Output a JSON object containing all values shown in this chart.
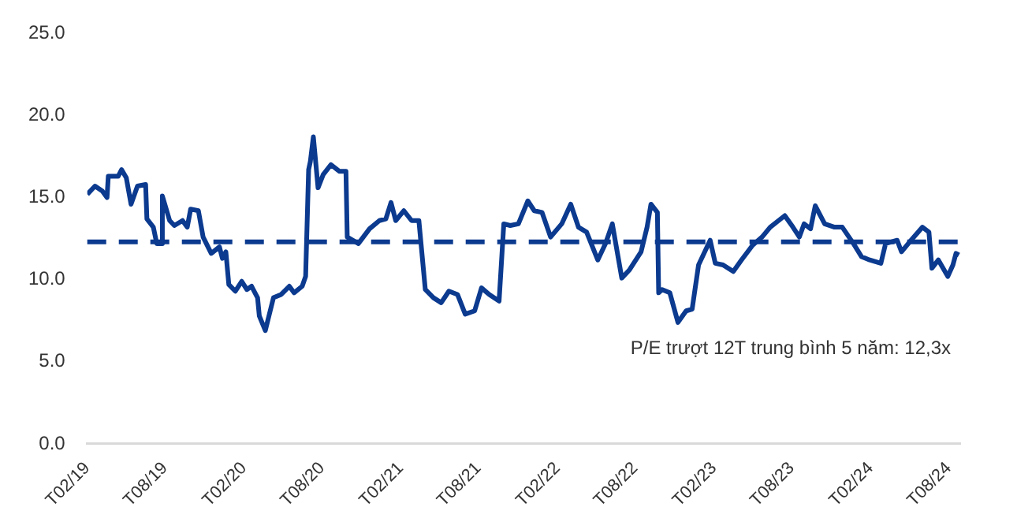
{
  "chart_data": {
    "type": "line",
    "x": [
      "2019-02-01",
      "2019-02-19",
      "2019-03-08",
      "2019-03-19",
      "2019-03-22",
      "2019-04-14",
      "2019-04-22",
      "2019-05-03",
      "2019-05-14",
      "2019-05-29",
      "2019-06-17",
      "2019-06-20",
      "2019-07-05",
      "2019-07-13",
      "2019-07-24",
      "2019-07-26",
      "2019-08-12",
      "2019-08-23",
      "2019-09-11",
      "2019-09-22",
      "2019-09-30",
      "2019-10-18",
      "2019-10-29",
      "2019-11-17",
      "2019-12-06",
      "2019-12-13",
      "2019-12-21",
      "2019-12-28",
      "2020-01-12",
      "2020-01-27",
      "2020-02-08",
      "2020-02-19",
      "2020-03-04",
      "2020-03-08",
      "2020-03-22",
      "2020-04-10",
      "2020-04-28",
      "2020-05-17",
      "2020-05-28",
      "2020-06-16",
      "2020-06-24",
      "2020-07-01",
      "2020-07-05",
      "2020-07-12",
      "2020-07-23",
      "2020-08-04",
      "2020-08-22",
      "2020-09-11",
      "2020-09-26",
      "2020-09-29",
      "2020-10-25",
      "2020-11-20",
      "2020-12-13",
      "2020-12-28",
      "2021-01-09",
      "2021-01-20",
      "2021-02-08",
      "2021-02-26",
      "2021-03-15",
      "2021-03-30",
      "2021-04-18",
      "2021-05-06",
      "2021-05-24",
      "2021-06-13",
      "2021-07-01",
      "2021-07-23",
      "2021-08-08",
      "2021-08-26",
      "2021-09-18",
      "2021-09-29",
      "2021-10-14",
      "2021-11-02",
      "2021-11-24",
      "2021-12-09",
      "2021-12-27",
      "2022-01-16",
      "2022-02-11",
      "2022-03-04",
      "2022-03-22",
      "2022-04-10",
      "2022-05-06",
      "2022-05-24",
      "2022-06-09",
      "2022-07-01",
      "2022-07-19",
      "2022-08-15",
      "2022-08-29",
      "2022-09-07",
      "2022-09-22",
      "2022-09-25",
      "2022-10-03",
      "2022-10-21",
      "2022-11-09",
      "2022-11-28",
      "2022-12-12",
      "2022-12-27",
      "2023-01-23",
      "2023-02-04",
      "2023-02-22",
      "2023-03-18",
      "2023-04-06",
      "2023-05-02",
      "2023-05-24",
      "2023-06-12",
      "2023-07-16",
      "2023-08-04",
      "2023-08-19",
      "2023-08-30",
      "2023-09-14",
      "2023-09-25",
      "2023-10-17",
      "2023-11-09",
      "2023-11-27",
      "2023-12-23",
      "2024-01-11",
      "2024-01-30",
      "2024-02-25",
      "2024-03-07",
      "2024-04-03",
      "2024-04-13",
      "2024-05-02",
      "2024-06-01",
      "2024-06-16",
      "2024-06-23",
      "2024-07-08",
      "2024-07-30",
      "2024-08-11",
      "2024-08-18",
      "2024-08-25"
    ],
    "series": [
      {
        "color": "#0b3a8f",
        "values": [
          15.2,
          15.7,
          15.4,
          15.0,
          16.3,
          16.3,
          16.7,
          16.2,
          14.6,
          15.7,
          15.8,
          13.7,
          13.2,
          12.2,
          12.2,
          15.1,
          13.6,
          13.3,
          13.6,
          13.2,
          14.3,
          14.2,
          12.6,
          11.6,
          12.0,
          11.3,
          11.7,
          9.7,
          9.3,
          9.9,
          9.4,
          9.6,
          8.9,
          7.8,
          6.9,
          8.9,
          9.1,
          9.6,
          9.2,
          9.6,
          10.2,
          16.7,
          17.2,
          18.7,
          15.6,
          16.4,
          17.0,
          16.6,
          16.6,
          12.6,
          12.2,
          13.1,
          13.6,
          13.7,
          14.7,
          13.6,
          14.2,
          13.6,
          13.6,
          9.4,
          8.9,
          8.6,
          9.3,
          9.1,
          7.9,
          8.1,
          9.5,
          9.1,
          8.7,
          13.4,
          13.3,
          13.4,
          14.8,
          14.2,
          14.1,
          12.6,
          13.4,
          14.6,
          13.2,
          12.9,
          11.2,
          12.2,
          13.4,
          10.1,
          10.6,
          11.7,
          13.2,
          14.6,
          14.1,
          9.2,
          9.4,
          9.2,
          7.4,
          8.1,
          8.2,
          10.9,
          12.4,
          11.0,
          10.9,
          10.5,
          11.2,
          12.1,
          12.6,
          13.2,
          13.9,
          13.2,
          12.6,
          13.4,
          13.1,
          14.5,
          13.4,
          13.2,
          13.2,
          12.2,
          11.4,
          11.2,
          11.0,
          12.2,
          12.4,
          11.7,
          12.3,
          13.2,
          12.9,
          10.7,
          11.2,
          10.2,
          10.9,
          11.6,
          11.5
        ]
      }
    ],
    "xlim": [
      "2019-02-01",
      "2024-08-28"
    ],
    "xticks": [
      {
        "value": "2019-02-01",
        "label": "T02/19"
      },
      {
        "value": "2019-08-01",
        "label": "T08/19"
      },
      {
        "value": "2020-02-01",
        "label": "T02/20"
      },
      {
        "value": "2020-08-01",
        "label": "T08/20"
      },
      {
        "value": "2021-02-01",
        "label": "T02/21"
      },
      {
        "value": "2021-08-01",
        "label": "T08/21"
      },
      {
        "value": "2022-02-01",
        "label": "T02/22"
      },
      {
        "value": "2022-08-01",
        "label": "T08/22"
      },
      {
        "value": "2023-02-01",
        "label": "T02/23"
      },
      {
        "value": "2023-08-01",
        "label": "T08/23"
      },
      {
        "value": "2024-02-01",
        "label": "T02/24"
      },
      {
        "value": "2024-08-01",
        "label": "T08/24"
      }
    ],
    "ylim": [
      0,
      25
    ],
    "yticks": [
      {
        "value": 0,
        "label": "0.0"
      },
      {
        "value": 5,
        "label": "5.0"
      },
      {
        "value": 10,
        "label": "10.0"
      },
      {
        "value": 15,
        "label": "15.0"
      },
      {
        "value": 20,
        "label": "20.0"
      },
      {
        "value": 25,
        "label": "25.0"
      }
    ],
    "ref_lines": [
      {
        "axis": "y",
        "value": 12.3,
        "color": "#0b3a8f",
        "line_style": "dashed"
      }
    ],
    "annotations": [
      "P/E trượt 12T trung bình 5 năm: 12,3x"
    ],
    "grid": false,
    "legend": false,
    "marker": "none",
    "line_style": "solid"
  }
}
